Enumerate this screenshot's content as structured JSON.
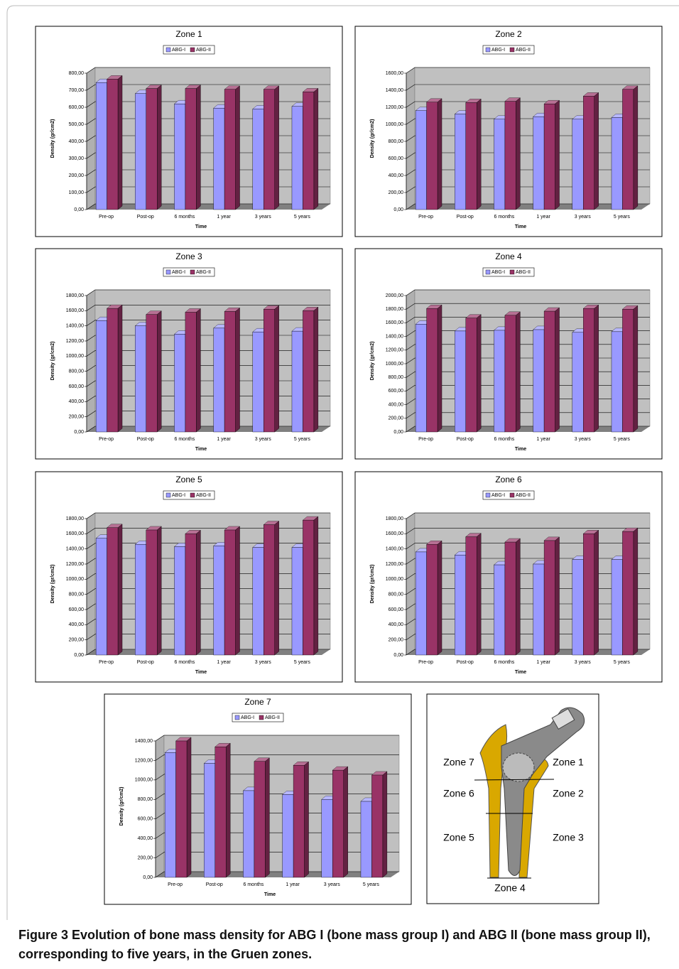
{
  "chart_data": [
    {
      "type": "bar",
      "title": "Zone 1",
      "x_label": "Time",
      "y_label": "Density (gr/cm2)",
      "categories": [
        "Pre-op",
        "Post-op",
        "6 months",
        "1 year",
        "3 years",
        "5 years"
      ],
      "series": [
        {
          "name": "ABG-I",
          "color": "#9999ff",
          "values": [
            745,
            680,
            620,
            595,
            590,
            605
          ]
        },
        {
          "name": "ABG-II",
          "color": "#993366",
          "values": [
            765,
            710,
            710,
            705,
            705,
            690
          ]
        }
      ],
      "ylim": [
        0,
        800
      ],
      "yticks": [
        {
          "value": 0,
          "label": "0,00"
        },
        {
          "value": 100,
          "label": "100,00"
        },
        {
          "value": 200,
          "label": "200,00"
        },
        {
          "value": 300,
          "label": "300,00"
        },
        {
          "value": 400,
          "label": "400,00"
        },
        {
          "value": 500,
          "label": "500,00"
        },
        {
          "value": 600,
          "label": "600,00"
        },
        {
          "value": 700,
          "label": "700,00"
        },
        {
          "value": 800,
          "label": "800,00"
        }
      ],
      "grid": true,
      "legend": "top"
    },
    {
      "type": "bar",
      "title": "Zone 2",
      "x_label": "Time",
      "y_label": "Density (gr/cm2)",
      "categories": [
        "Pre-op",
        "Post-op",
        "6 months",
        "1 year",
        "3 years",
        "5 years"
      ],
      "series": [
        {
          "name": "ABG-I",
          "color": "#9999ff",
          "values": [
            1160,
            1120,
            1060,
            1090,
            1060,
            1080
          ]
        },
        {
          "name": "ABG-II",
          "color": "#993366",
          "values": [
            1260,
            1255,
            1270,
            1240,
            1330,
            1410
          ]
        }
      ],
      "ylim": [
        0,
        1600
      ],
      "yticks": [
        {
          "value": 0,
          "label": "0,00"
        },
        {
          "value": 200,
          "label": "200,00"
        },
        {
          "value": 400,
          "label": "400,00"
        },
        {
          "value": 600,
          "label": "600,00"
        },
        {
          "value": 800,
          "label": "800,00"
        },
        {
          "value": 1000,
          "label": "1000,00"
        },
        {
          "value": 1200,
          "label": "1200,00"
        },
        {
          "value": 1400,
          "label": "1400,00"
        },
        {
          "value": 1600,
          "label": "1600,00"
        }
      ],
      "grid": true,
      "legend": "top"
    },
    {
      "type": "bar",
      "title": "Zone 3",
      "x_label": "Time",
      "y_label": "Density (gr/cm2)",
      "categories": [
        "Pre-op",
        "Post-op",
        "6 months",
        "1 year",
        "3 years",
        "5 years"
      ],
      "series": [
        {
          "name": "ABG-I",
          "color": "#9999ff",
          "values": [
            1470,
            1400,
            1290,
            1370,
            1320,
            1330
          ]
        },
        {
          "name": "ABG-II",
          "color": "#993366",
          "values": [
            1630,
            1550,
            1580,
            1590,
            1620,
            1600
          ]
        }
      ],
      "ylim": [
        0,
        1800
      ],
      "yticks": [
        {
          "value": 0,
          "label": "0,00"
        },
        {
          "value": 200,
          "label": "200,00"
        },
        {
          "value": 400,
          "label": "400,00"
        },
        {
          "value": 600,
          "label": "600,00"
        },
        {
          "value": 800,
          "label": "800,00"
        },
        {
          "value": 1000,
          "label": "1000,00"
        },
        {
          "value": 1200,
          "label": "1200,00"
        },
        {
          "value": 1400,
          "label": "1400,00"
        },
        {
          "value": 1600,
          "label": "1600,00"
        },
        {
          "value": 1800,
          "label": "1800,00"
        }
      ],
      "grid": true,
      "legend": "top"
    },
    {
      "type": "bar",
      "title": "Zone 4",
      "x_label": "Time",
      "y_label": "Density (gr/cm2)",
      "categories": [
        "Pre-op",
        "Post-op",
        "6 months",
        "1 year",
        "3 years",
        "5 years"
      ],
      "series": [
        {
          "name": "ABG-I",
          "color": "#9999ff",
          "values": [
            1580,
            1480,
            1490,
            1500,
            1460,
            1470
          ]
        },
        {
          "name": "ABG-II",
          "color": "#993366",
          "values": [
            1810,
            1670,
            1710,
            1770,
            1810,
            1800
          ]
        }
      ],
      "ylim": [
        0,
        2000
      ],
      "yticks": [
        {
          "value": 0,
          "label": "0,00"
        },
        {
          "value": 200,
          "label": "200,00"
        },
        {
          "value": 400,
          "label": "400,00"
        },
        {
          "value": 600,
          "label": "600,00"
        },
        {
          "value": 800,
          "label": "800,00"
        },
        {
          "value": 1000,
          "label": "1000,00"
        },
        {
          "value": 1200,
          "label": "1200,00"
        },
        {
          "value": 1400,
          "label": "1400,00"
        },
        {
          "value": 1600,
          "label": "1600,00"
        },
        {
          "value": 1800,
          "label": "1800,00"
        },
        {
          "value": 2000,
          "label": "2000,00"
        }
      ],
      "grid": true,
      "legend": "top"
    },
    {
      "type": "bar",
      "title": "Zone 5",
      "x_label": "Time",
      "y_label": "Density (gr/cm2)",
      "categories": [
        "Pre-op",
        "Post-op",
        "6 months",
        "1 year",
        "3 years",
        "5 years"
      ],
      "series": [
        {
          "name": "ABG-I",
          "color": "#9999ff",
          "values": [
            1540,
            1460,
            1430,
            1440,
            1420,
            1420
          ]
        },
        {
          "name": "ABG-II",
          "color": "#993366",
          "values": [
            1680,
            1650,
            1600,
            1650,
            1720,
            1780
          ]
        }
      ],
      "ylim": [
        0,
        1800
      ],
      "yticks": [
        {
          "value": 0,
          "label": "0,00"
        },
        {
          "value": 200,
          "label": "200,00"
        },
        {
          "value": 400,
          "label": "400,00"
        },
        {
          "value": 600,
          "label": "600,00"
        },
        {
          "value": 800,
          "label": "800,00"
        },
        {
          "value": 1000,
          "label": "1000,00"
        },
        {
          "value": 1200,
          "label": "1200,00"
        },
        {
          "value": 1400,
          "label": "1400,00"
        },
        {
          "value": 1600,
          "label": "1600,00"
        },
        {
          "value": 1800,
          "label": "1800,00"
        }
      ],
      "grid": true,
      "legend": "top"
    },
    {
      "type": "bar",
      "title": "Zone 6",
      "x_label": "Time",
      "y_label": "Density (gr/cm2)",
      "categories": [
        "Pre-op",
        "Post-op",
        "6 months",
        "1 year",
        "3 years",
        "5 years"
      ],
      "series": [
        {
          "name": "ABG-I",
          "color": "#9999ff",
          "values": [
            1360,
            1320,
            1190,
            1200,
            1260,
            1260
          ]
        },
        {
          "name": "ABG-II",
          "color": "#993366",
          "values": [
            1460,
            1560,
            1490,
            1510,
            1600,
            1630
          ]
        }
      ],
      "ylim": [
        0,
        1800
      ],
      "yticks": [
        {
          "value": 0,
          "label": "0,00"
        },
        {
          "value": 200,
          "label": "200,00"
        },
        {
          "value": 400,
          "label": "400,00"
        },
        {
          "value": 600,
          "label": "600,00"
        },
        {
          "value": 800,
          "label": "800,00"
        },
        {
          "value": 1000,
          "label": "1000,00"
        },
        {
          "value": 1200,
          "label": "1200,00"
        },
        {
          "value": 1400,
          "label": "1400,00"
        },
        {
          "value": 1600,
          "label": "1600,00"
        },
        {
          "value": 1800,
          "label": "1800,00"
        }
      ],
      "grid": true,
      "legend": "top"
    },
    {
      "type": "bar",
      "title": "Zone 7",
      "x_label": "Time",
      "y_label": "Density (gr/cm2)",
      "categories": [
        "Pre-op",
        "Post-op",
        "6 months",
        "1 year",
        "3 years",
        "5 years"
      ],
      "series": [
        {
          "name": "ABG-I",
          "color": "#9999ff",
          "values": [
            1280,
            1170,
            890,
            850,
            800,
            780
          ]
        },
        {
          "name": "ABG-II",
          "color": "#993366",
          "values": [
            1400,
            1340,
            1190,
            1150,
            1100,
            1050
          ]
        }
      ],
      "ylim": [
        0,
        1400
      ],
      "yticks": [
        {
          "value": 0,
          "label": "0,00"
        },
        {
          "value": 200,
          "label": "200,00"
        },
        {
          "value": 400,
          "label": "400,00"
        },
        {
          "value": 600,
          "label": "600,00"
        },
        {
          "value": 800,
          "label": "800,00"
        },
        {
          "value": 1000,
          "label": "1000,00"
        },
        {
          "value": 1200,
          "label": "1200,00"
        },
        {
          "value": 1400,
          "label": "1400,00"
        }
      ],
      "grid": true,
      "legend": "top"
    }
  ],
  "diagram": {
    "labels": [
      "Zone 7",
      "Zone 1",
      "Zone 6",
      "Zone 2",
      "Zone 5",
      "Zone 3",
      "Zone 4"
    ]
  },
  "caption": {
    "label": "Figure 3",
    "text": "Evolution of bone mass density for ABG I (bone mass group I) and ABG II (bone mass group II), corresponding to five years, in the Gruen zones."
  }
}
